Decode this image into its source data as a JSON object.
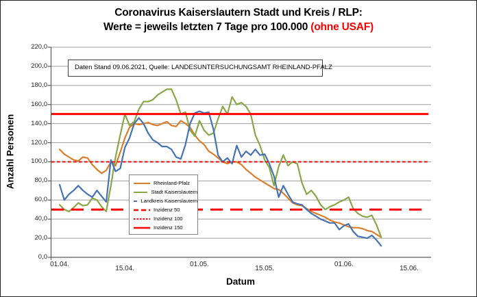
{
  "title": {
    "line1": "Coronavirus Kaiserslautern Stadt und Kreis / RLP:",
    "line2_prefix": "Werte = jeweils letzten 7 Tage pro 100.000 ",
    "line2_red": "(ohne USAF)"
  },
  "annotation_box": "Daten Stand 09.06.2021, Quelle: LANDESUNTERSUCHUNGSAMT RHEINLAND-PFALZ",
  "colors": {
    "rlp_orange": "#DD7C28",
    "stadt_green": "#89A649",
    "landkreis_blue": "#4472B4",
    "incidence_red": "#FF0000"
  },
  "legend": {
    "items": [
      {
        "label": "Rheinland-Pfalz",
        "color": "#DD7C28",
        "dash": "",
        "w": 2
      },
      {
        "label": "Stadt Kaiserslautern",
        "color": "#89A649",
        "dash": "",
        "w": 2
      },
      {
        "label": "Landkreis Kaiserslautern",
        "color": "#4472B4",
        "dash": "",
        "w": 2
      },
      {
        "label": "Inzidenz 50",
        "color": "#FF0000",
        "dash": "7 4",
        "w": 2.5
      },
      {
        "label": "Inzidenz 100",
        "color": "#FF0000",
        "dash": "2.5 2",
        "w": 2
      },
      {
        "label": "Inzidenz 150",
        "color": "#FF0000",
        "dash": "",
        "w": 2.5
      }
    ]
  },
  "chart_data": {
    "type": "line",
    "title": "Coronavirus Kaiserslautern Stadt und Kreis / RLP: Werte = jeweils letzten 7 Tage pro 100.000 (ohne USAF)",
    "xlabel": "Datum",
    "ylabel": "Anzahl Personen",
    "ylim": [
      0,
      220
    ],
    "grid": true,
    "legend_position": "center-left",
    "x": [
      "01.04.",
      "02.04.",
      "03.04.",
      "04.04.",
      "05.04.",
      "06.04.",
      "07.04.",
      "08.04.",
      "09.04.",
      "10.04.",
      "11.04.",
      "12.04.",
      "13.04.",
      "14.04.",
      "15.04.",
      "16.04.",
      "17.04.",
      "18.04.",
      "19.04.",
      "20.04.",
      "21.04.",
      "22.04.",
      "23.04.",
      "24.04.",
      "25.04.",
      "26.04.",
      "27.04.",
      "28.04.",
      "29.04.",
      "30.04.",
      "01.05.",
      "02.05.",
      "03.05.",
      "04.05.",
      "05.05.",
      "06.05.",
      "07.05.",
      "08.05.",
      "09.05.",
      "10.05.",
      "11.05.",
      "12.05.",
      "13.05.",
      "14.05.",
      "15.05.",
      "16.05.",
      "17.05.",
      "18.05.",
      "19.05.",
      "20.05.",
      "21.05.",
      "22.05.",
      "23.05.",
      "24.05.",
      "25.05.",
      "26.05.",
      "27.05.",
      "28.05.",
      "29.05.",
      "30.05.",
      "31.05.",
      "01.06.",
      "02.06.",
      "03.06.",
      "04.06.",
      "05.06.",
      "06.06.",
      "07.06.",
      "08.06.",
      "09.06."
    ],
    "series": [
      {
        "name": "Rheinland-Pfalz",
        "color": "#DD7C28",
        "values": [
          113,
          108,
          105,
          102,
          101,
          105,
          104,
          97,
          92,
          88,
          91,
          100,
          96,
          110,
          125,
          136,
          140,
          139,
          140,
          141,
          139,
          138,
          140,
          142,
          138,
          137,
          143,
          140,
          136,
          128,
          122,
          118,
          111,
          108,
          104,
          100,
          98,
          100,
          100,
          97,
          92,
          88,
          84,
          81,
          78,
          75,
          72,
          71,
          67,
          62,
          57,
          55,
          54,
          51,
          48,
          46,
          44,
          42,
          39,
          37,
          36,
          34,
          32,
          31,
          31,
          30,
          28,
          27,
          24,
          21
        ]
      },
      {
        "name": "Stadt Kaiserslautern",
        "color": "#89A649",
        "values": [
          55,
          50,
          48,
          52,
          57,
          54,
          55,
          62,
          60,
          53,
          48,
          75,
          105,
          128,
          150,
          138,
          142,
          155,
          163,
          163,
          165,
          170,
          173,
          176,
          176,
          165,
          150,
          152,
          133,
          127,
          143,
          133,
          128,
          130,
          145,
          158,
          150,
          168,
          160,
          162,
          158,
          150,
          128,
          117,
          102,
          94,
          75,
          95,
          107,
          96,
          100,
          98,
          78,
          66,
          70,
          64,
          55,
          50,
          53,
          55,
          58,
          60,
          63,
          51,
          46,
          43,
          42,
          44,
          34,
          21
        ]
      },
      {
        "name": "Landkreis Kaiserslautern",
        "color": "#4472B4",
        "values": [
          76,
          60,
          66,
          70,
          75,
          70,
          66,
          63,
          70,
          64,
          58,
          102,
          90,
          93,
          115,
          125,
          140,
          146,
          140,
          130,
          123,
          120,
          116,
          116,
          113,
          105,
          103,
          118,
          140,
          151,
          153,
          151,
          152,
          134,
          107,
          100,
          104,
          98,
          117,
          105,
          111,
          107,
          113,
          107,
          108,
          98,
          85,
          63,
          75,
          66,
          58,
          56,
          55,
          50,
          46,
          43,
          40,
          38,
          36,
          36,
          29,
          33,
          35,
          27,
          22,
          21,
          20,
          23,
          18,
          12
        ]
      }
    ],
    "reference_lines": [
      {
        "name": "Inzidenz 50",
        "value": 50,
        "color": "#FF0000",
        "dash": "18 11",
        "w": 3
      },
      {
        "name": "Inzidenz 100",
        "value": 100,
        "color": "#FF0000",
        "dash": "4.5 3.5",
        "w": 2
      },
      {
        "name": "Inzidenz 150",
        "value": 150,
        "color": "#FF0000",
        "dash": "",
        "w": 3
      }
    ],
    "y_ticks": [
      {
        "value": 220,
        "label": "220,0"
      },
      {
        "value": 200,
        "label": "200,0"
      },
      {
        "value": 180,
        "label": "180,0"
      },
      {
        "value": 160,
        "label": "160,0"
      },
      {
        "value": 140,
        "label": "140,0"
      },
      {
        "value": 120,
        "label": "120,0"
      },
      {
        "value": 100,
        "label": "100,0"
      },
      {
        "value": 80,
        "label": "80,0"
      },
      {
        "value": 60,
        "label": "60,0"
      },
      {
        "value": 40,
        "label": "40,0"
      },
      {
        "value": 20,
        "label": "20,0"
      },
      {
        "value": 0,
        "label": "0,0"
      }
    ],
    "x_ticks": [
      {
        "day": 0,
        "label": "01.04."
      },
      {
        "day": 14,
        "label": "15.04."
      },
      {
        "day": 30,
        "label": "01.05."
      },
      {
        "day": 44,
        "label": "15.05."
      },
      {
        "day": 61,
        "label": "01.06."
      },
      {
        "day": 75,
        "label": "15.06."
      }
    ]
  }
}
